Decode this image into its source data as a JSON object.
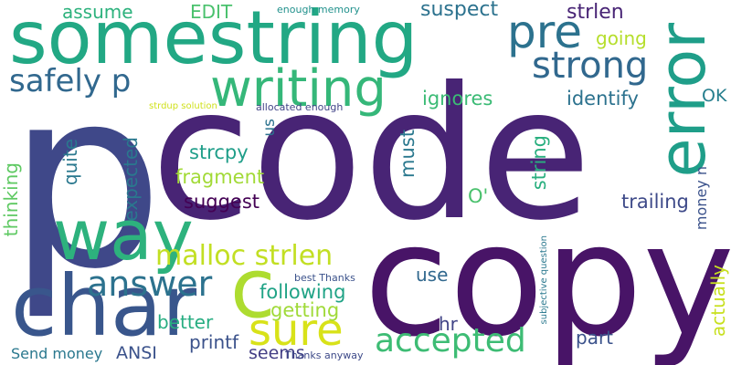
{
  "words": [
    {
      "text": "code",
      "color": "#482475"
    },
    {
      "text": "p",
      "color": "#3f4889"
    },
    {
      "text": "somestring",
      "color": "#22a884"
    },
    {
      "text": "copy",
      "color": "#481467"
    },
    {
      "text": "char",
      "color": "#39568c"
    },
    {
      "text": "way",
      "color": "#2db27d"
    },
    {
      "text": "error",
      "color": "#1f9e89"
    },
    {
      "text": "pre",
      "color": "#2c728e"
    },
    {
      "text": "strong",
      "color": "#31688e"
    },
    {
      "text": "writing",
      "color": "#35b779"
    },
    {
      "text": "c",
      "color": "#addc30"
    },
    {
      "text": "sure",
      "color": "#d8e219"
    },
    {
      "text": "accepted",
      "color": "#3dbc74"
    },
    {
      "text": "answer",
      "color": "#2c728e"
    },
    {
      "text": "malloc strlen",
      "color": "#c2df23"
    },
    {
      "text": "safely p",
      "color": "#31688e"
    },
    {
      "text": "assume",
      "color": "#2db27d"
    },
    {
      "text": "EDIT",
      "color": "#4ac16d"
    },
    {
      "text": "enough memory",
      "color": "#21918c"
    },
    {
      "text": "suspect",
      "color": "#2c728e"
    },
    {
      "text": "strlen",
      "color": "#482475"
    },
    {
      "text": "going",
      "color": "#b5de2b"
    },
    {
      "text": "ignores",
      "color": "#3bbb75"
    },
    {
      "text": "identify",
      "color": "#2c728e"
    },
    {
      "text": "OK",
      "color": "#277f8e"
    },
    {
      "text": "strdup solution",
      "color": "#d0e11c"
    },
    {
      "text": "allocated enough",
      "color": "#414487"
    },
    {
      "text": "strcpy",
      "color": "#1f9e89"
    },
    {
      "text": "fragment",
      "color": "#a2da37"
    },
    {
      "text": "suggest",
      "color": "#440154"
    },
    {
      "text": "expected",
      "color": "#2a788e"
    },
    {
      "text": "quite",
      "color": "#2a788e"
    },
    {
      "text": "us",
      "color": "#2c728e"
    },
    {
      "text": "must",
      "color": "#2a788e"
    },
    {
      "text": "O'",
      "color": "#4ac16d"
    },
    {
      "text": "string",
      "color": "#29af7f"
    },
    {
      "text": "trailing",
      "color": "#3e4a89"
    },
    {
      "text": "money n",
      "color": "#3b528b"
    },
    {
      "text": "thinking",
      "color": "#5ec962"
    },
    {
      "text": "following",
      "color": "#20a386"
    },
    {
      "text": "use",
      "color": "#31688e"
    },
    {
      "text": "best Thanks",
      "color": "#3b528b"
    },
    {
      "text": "getting",
      "color": "#a0da39"
    },
    {
      "text": "better",
      "color": "#26ad81"
    },
    {
      "text": "hr",
      "color": "#414487"
    },
    {
      "text": "subjective question",
      "color": "#2a788e"
    },
    {
      "text": "part",
      "color": "#3b528b"
    },
    {
      "text": "actually",
      "color": "#c8e020"
    },
    {
      "text": "printf",
      "color": "#3b528b"
    },
    {
      "text": "seems",
      "color": "#433e85"
    },
    {
      "text": "ANSI",
      "color": "#3b528b"
    },
    {
      "text": "Send money",
      "color": "#2a788e"
    },
    {
      "text": "Thanks anyway",
      "color": "#3e4a89"
    }
  ]
}
